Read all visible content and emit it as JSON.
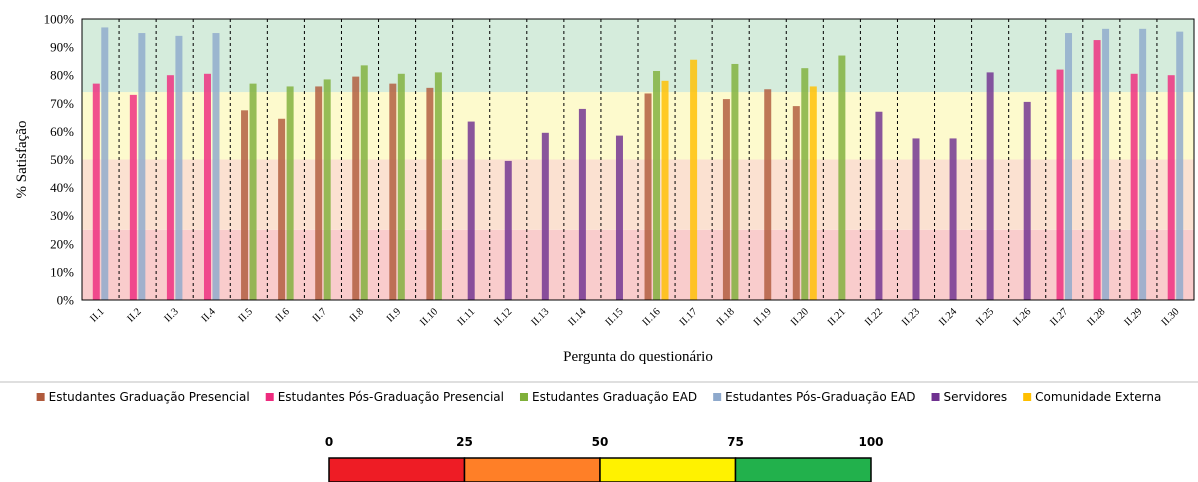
{
  "chart_data": {
    "type": "bar",
    "xlabel": "Pergunta do questionário",
    "ylabel": "% Satisfação",
    "ylim": [
      0,
      100
    ],
    "yticks": [
      "0%",
      "10%",
      "20%",
      "30%",
      "40%",
      "50%",
      "60%",
      "70%",
      "80%",
      "90%",
      "100%"
    ],
    "categories": [
      "II.1",
      "II.2",
      "II.3",
      "II.4",
      "II.5",
      "II.6",
      "II.7",
      "II.8",
      "II.9",
      "II.10",
      "II.11",
      "II.12",
      "II.13",
      "II.14",
      "II.15",
      "II.16",
      "II.17",
      "II.18",
      "II.19",
      "II.20",
      "II.21",
      "II.22",
      "II.23",
      "II.24",
      "II.25",
      "II.26",
      "II.27",
      "II.28",
      "II.29",
      "II.30"
    ],
    "bands": [
      {
        "from": 0,
        "to": 25,
        "color": "#f9cccc"
      },
      {
        "from": 25,
        "to": 50,
        "color": "#fbe1d1"
      },
      {
        "from": 50,
        "to": 74,
        "color": "#fdfacd"
      },
      {
        "from": 74,
        "to": 100,
        "color": "#d5ecdc"
      }
    ],
    "grid": "vertical dashed separators",
    "legend_position": "bottom",
    "series": [
      {
        "name": "Estudantes Graduação Presencial",
        "color": "#b05a3c",
        "values": [
          null,
          null,
          null,
          null,
          67.5,
          64.5,
          76,
          79.5,
          77,
          75.5,
          null,
          null,
          null,
          null,
          null,
          73.5,
          null,
          71.5,
          75,
          69,
          null,
          null,
          null,
          null,
          null,
          null,
          null,
          null,
          null,
          null
        ]
      },
      {
        "name": "Estudantes Pós-Graduação Presencial",
        "color": "#ee2b7e",
        "values": [
          77,
          73,
          80,
          80.5,
          null,
          null,
          null,
          null,
          null,
          null,
          null,
          null,
          null,
          null,
          null,
          null,
          null,
          null,
          null,
          null,
          null,
          null,
          null,
          null,
          null,
          null,
          82,
          92.5,
          80.5,
          80
        ]
      },
      {
        "name": "Estudantes Graduação EAD",
        "color": "#7fb03a",
        "values": [
          null,
          null,
          null,
          null,
          77,
          76,
          78.5,
          83.5,
          80.5,
          81,
          null,
          null,
          null,
          null,
          null,
          81.5,
          null,
          84,
          null,
          82.5,
          87,
          null,
          null,
          null,
          null,
          null,
          null,
          null,
          null,
          null
        ]
      },
      {
        "name": "Estudantes Pós-Graduação EAD",
        "color": "#8ea9cc",
        "values": [
          97,
          95,
          94,
          95,
          null,
          null,
          null,
          null,
          null,
          null,
          null,
          null,
          null,
          null,
          null,
          null,
          null,
          null,
          null,
          null,
          null,
          null,
          null,
          null,
          null,
          null,
          95,
          96.5,
          96.5,
          95.5
        ]
      },
      {
        "name": "Servidores",
        "color": "#6f3190",
        "values": [
          null,
          null,
          null,
          null,
          null,
          null,
          null,
          null,
          null,
          null,
          63.5,
          49.5,
          59.5,
          68,
          58.5,
          null,
          null,
          null,
          null,
          null,
          null,
          67,
          57.5,
          57.5,
          81,
          70.5,
          null,
          null,
          null,
          null
        ]
      },
      {
        "name": "Comunidade Externa",
        "color": "#ffbf00",
        "values": [
          null,
          null,
          null,
          null,
          null,
          null,
          null,
          null,
          null,
          null,
          null,
          null,
          null,
          null,
          null,
          78,
          85.5,
          null,
          null,
          76,
          null,
          null,
          null,
          null,
          null,
          null,
          null,
          null,
          null,
          null
        ]
      }
    ],
    "scale": {
      "ticks": [
        "0",
        "25",
        "50",
        "75",
        "100"
      ],
      "segments": [
        {
          "from": 0,
          "to": 25,
          "color": "#ee1c25"
        },
        {
          "from": 25,
          "to": 50,
          "color": "#ff7f27"
        },
        {
          "from": 50,
          "to": 75,
          "color": "#fff200"
        },
        {
          "from": 75,
          "to": 100,
          "color": "#22b14c"
        }
      ]
    }
  }
}
